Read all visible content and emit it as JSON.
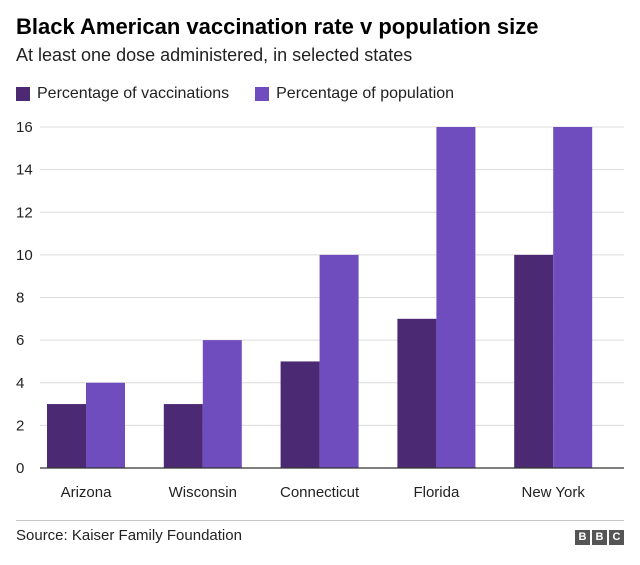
{
  "header": {
    "title": "Black American vaccination rate v population size",
    "subtitle": "At least one dose administered, in selected states"
  },
  "legend": [
    {
      "label": "Percentage of vaccinations",
      "color": "#4b2a73"
    },
    {
      "label": "Percentage of population",
      "color": "#6f4dbf"
    }
  ],
  "chart_data": {
    "type": "bar",
    "title": "Black American vaccination rate v population size",
    "subtitle": "At least one dose administered, in selected states",
    "categories": [
      "Arizona",
      "Wisconsin",
      "Connecticut",
      "Florida",
      "New York"
    ],
    "series": [
      {
        "name": "Percentage of vaccinations",
        "color": "#4b2a73",
        "values": [
          3,
          3,
          5,
          7,
          10
        ]
      },
      {
        "name": "Percentage of population",
        "color": "#6f4dbf",
        "values": [
          4,
          6,
          10,
          16,
          16
        ]
      }
    ],
    "yticks": [
      0,
      2,
      4,
      6,
      8,
      10,
      12,
      14,
      16
    ],
    "ylim": [
      0,
      16
    ],
    "xlabel": "",
    "ylabel": "",
    "grid": true,
    "legend_position": "top-left"
  },
  "footer": {
    "source": "Source: Kaiser Family Foundation",
    "logo_letters": [
      "B",
      "B",
      "C"
    ]
  }
}
